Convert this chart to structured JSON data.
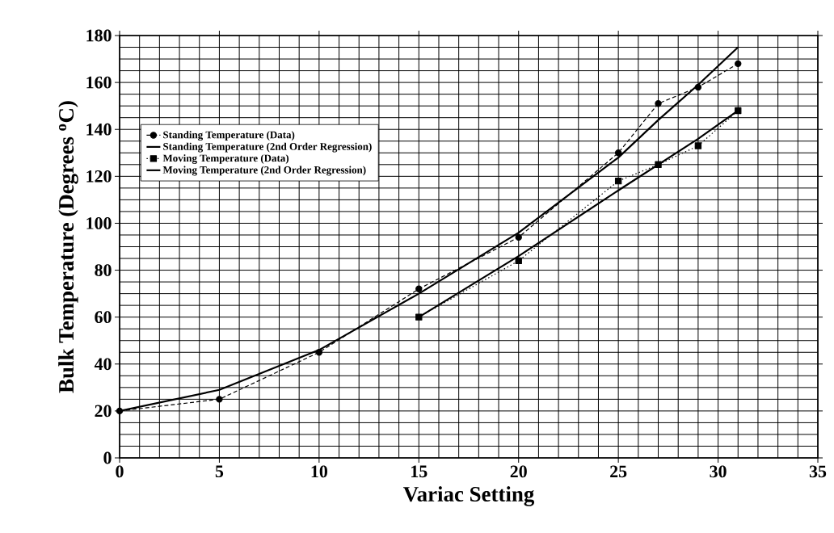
{
  "chart_data": {
    "type": "line",
    "xlabel": "Variac Setting",
    "ylabel": "Bulk Temperature (Degrees $^{o}$C)",
    "xlim": [
      0,
      35
    ],
    "xticks": [
      0,
      5,
      10,
      15,
      20,
      25,
      30,
      35
    ],
    "ylim": [
      0,
      180
    ],
    "yticks": [
      0,
      20,
      40,
      60,
      80,
      100,
      120,
      140,
      160,
      180
    ],
    "grid": true,
    "legend": "left",
    "series": [
      {
        "name": "Standing Temperature (Data)",
        "color": "#000000",
        "marker": "circle",
        "line_style": "dashed",
        "x": [
          0,
          5,
          10,
          15,
          20,
          25,
          27,
          29,
          31
        ],
        "values": [
          20,
          25,
          45,
          72,
          94,
          130,
          151,
          158,
          168
        ]
      },
      {
        "name": "Standing Temperature (2nd Order Regression)",
        "color": "#000000",
        "marker": "none",
        "line_style": "solid",
        "x": [
          0,
          5,
          10,
          15,
          20,
          25,
          27,
          29,
          31
        ],
        "values": [
          20,
          29,
          46,
          70,
          96,
          128,
          144,
          159,
          175
        ]
      },
      {
        "name": "Moving Temperature (Data)",
        "color": "#000000",
        "marker": "square",
        "line_style": "dotted",
        "x": [
          15,
          20,
          25,
          27,
          29,
          31
        ],
        "values": [
          60,
          84,
          118,
          125,
          133,
          148
        ]
      },
      {
        "name": "Moving Temperature (2nd Order Regression)",
        "color": "#000000",
        "marker": "none",
        "line_style": "solid",
        "x": [
          15,
          20,
          25,
          27,
          29,
          31
        ],
        "values": [
          60,
          86,
          114,
          125,
          136,
          148
        ]
      }
    ]
  }
}
